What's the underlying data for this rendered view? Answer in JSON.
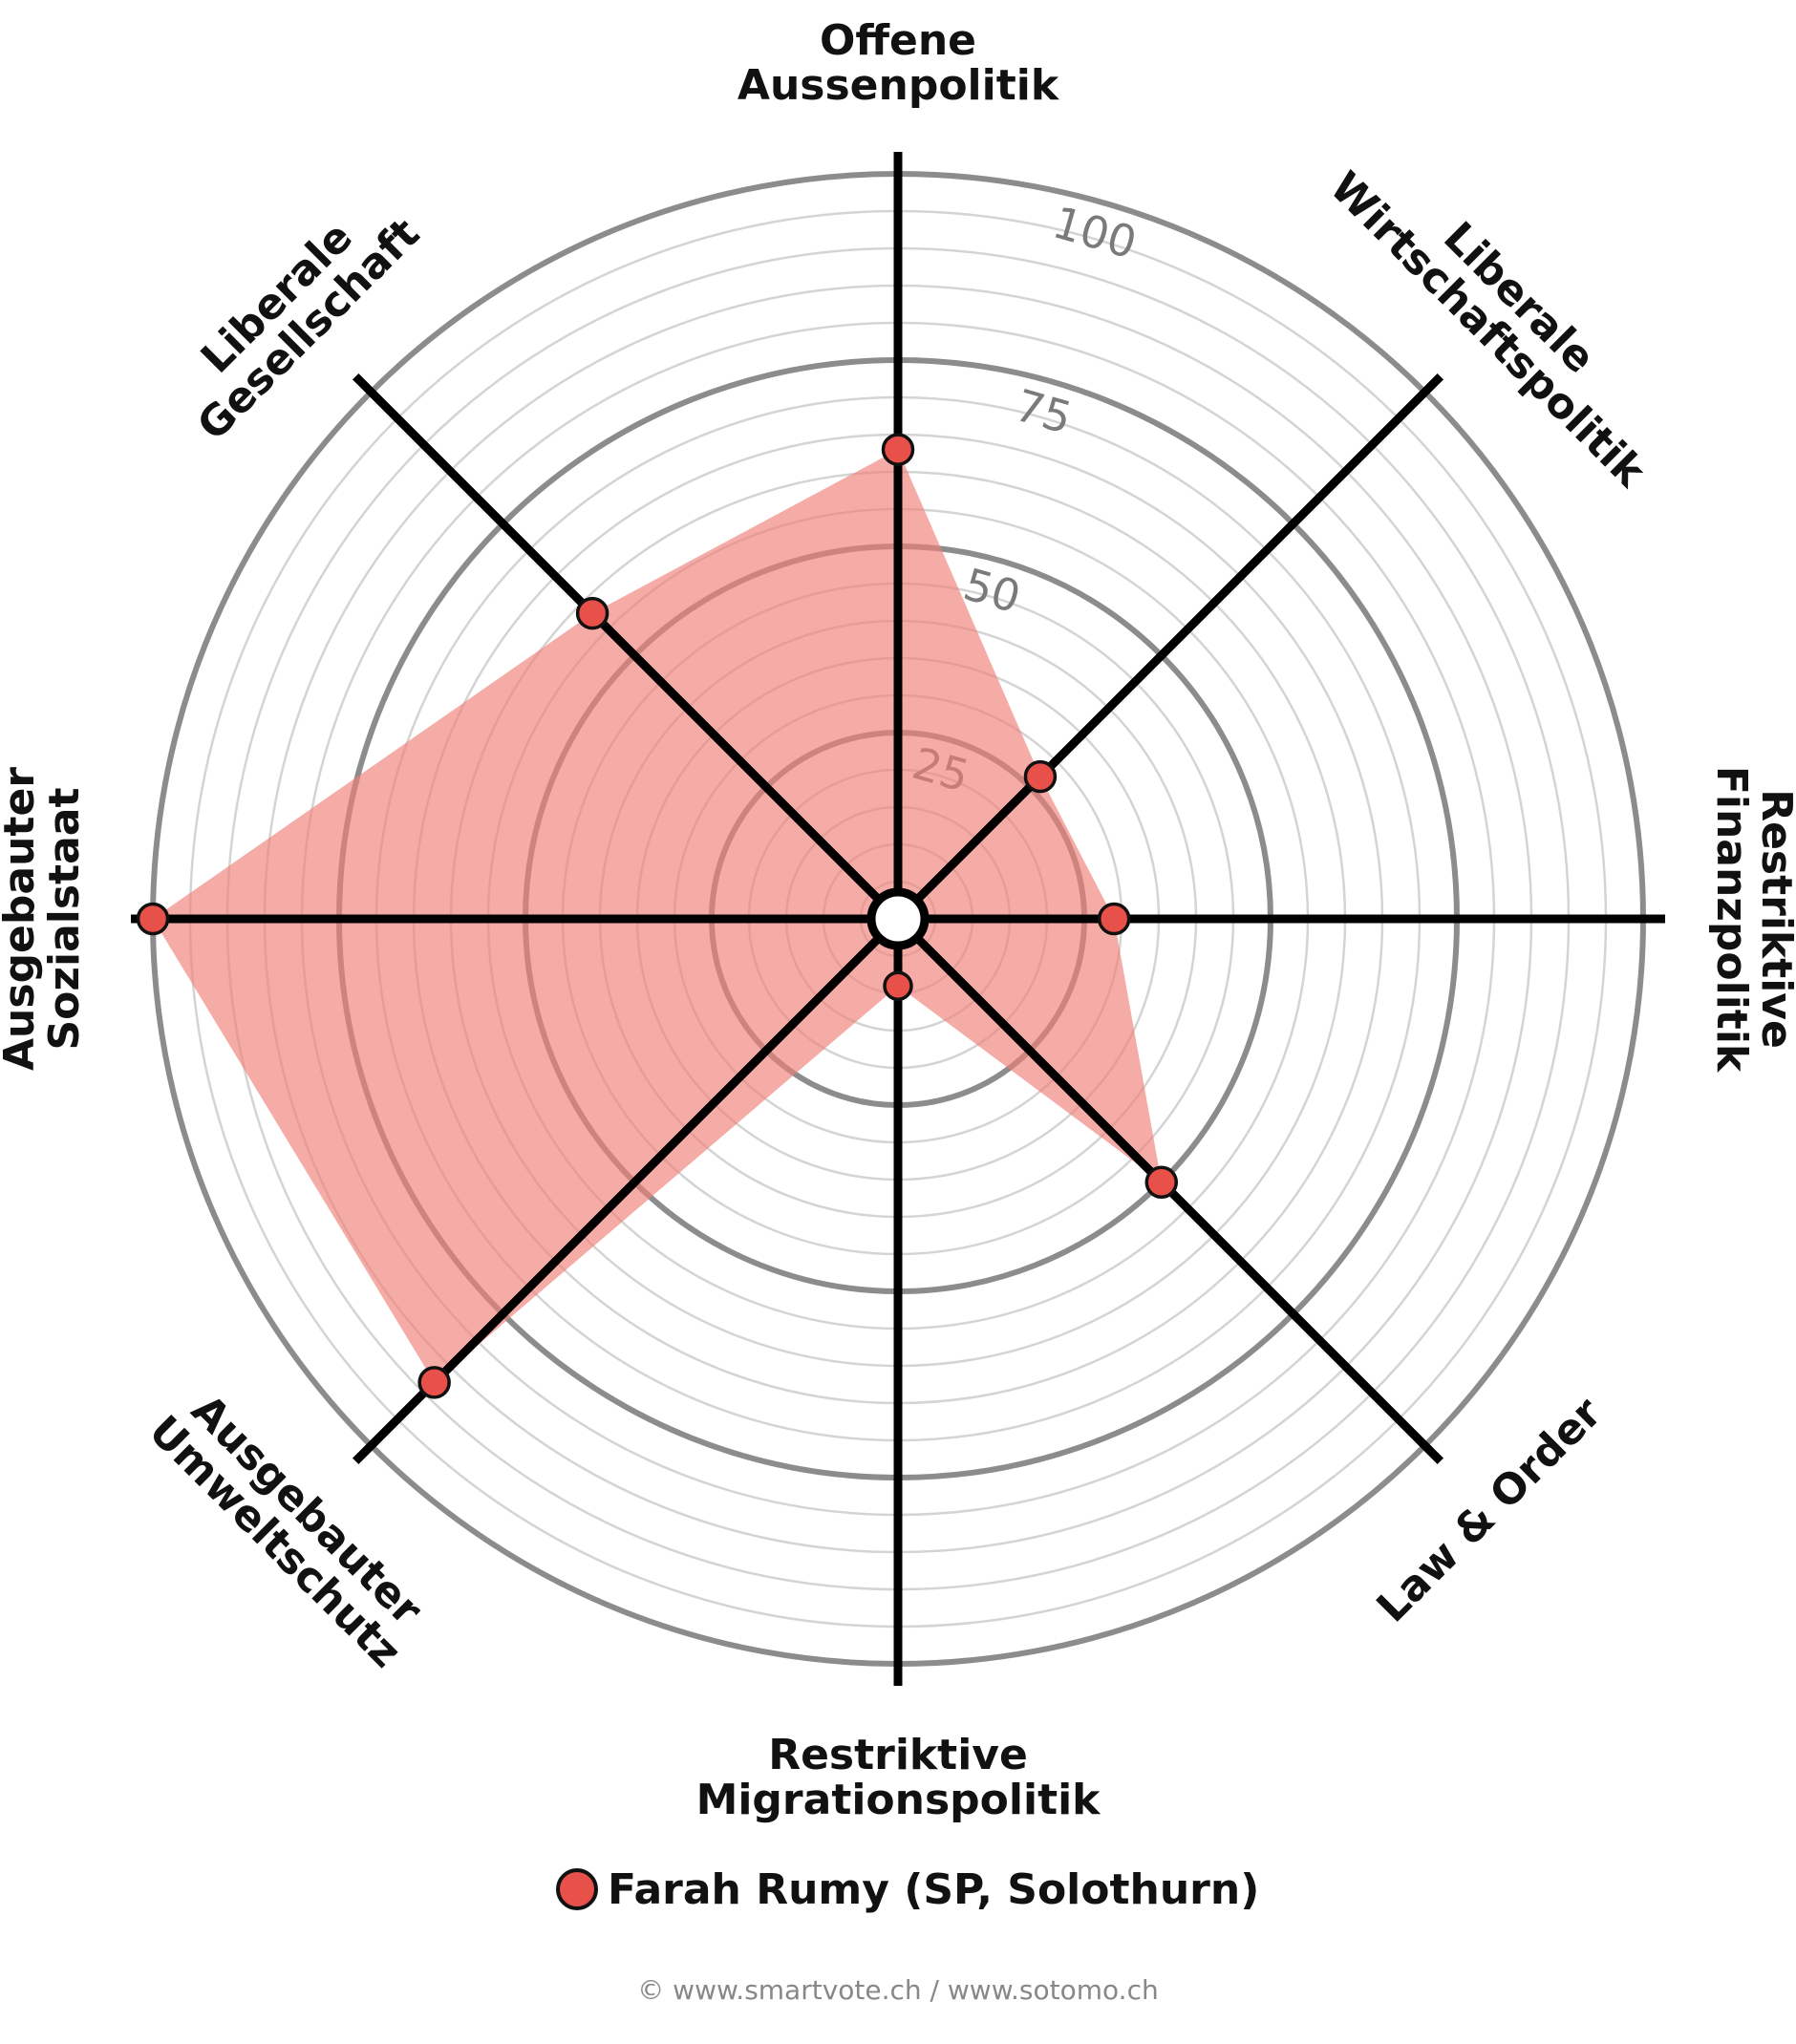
{
  "chart_data": {
    "type": "radar",
    "axes": [
      "Offene Aussenpolitik",
      "Liberale Wirtschaftspolitik",
      "Restriktive Finanzpolitik",
      "Law & Order",
      "Restriktive Migrationspolitik",
      "Ausgebauter Umweltschutz",
      "Ausgebauter Sozialstaat",
      "Liberale Gesellschaft"
    ],
    "axis_label_lines": [
      [
        "Offene",
        "Aussenpolitik"
      ],
      [
        "Liberale",
        "Wirtschaftspolitik"
      ],
      [
        "Restriktive",
        "Finanzpolitik"
      ],
      [
        "Law & Order"
      ],
      [
        "Restriktive",
        "Migrationspolitik"
      ],
      [
        "Ausgebauter",
        "Umweltschutz"
      ],
      [
        "Ausgebauter",
        "Sozialstaat"
      ],
      [
        "Liberale",
        "Gesellschaft"
      ]
    ],
    "series": [
      {
        "name": "Farah Rumy (SP, Solothurn)",
        "values": [
          63,
          27,
          29,
          50,
          9,
          88,
          100,
          58
        ]
      }
    ],
    "range": [
      0,
      100
    ],
    "major_ticks": [
      25,
      50,
      75,
      100
    ],
    "minor_step": 5,
    "grid": true,
    "legend_position": "bottom",
    "colors": {
      "fill": "#f08078",
      "fill_opacity": 0.65,
      "marker": "#e8504a",
      "marker_stroke": "#111111",
      "axis": "#000000",
      "major_grid": "#8c8c8c",
      "minor_grid": "#d4d4d4"
    }
  },
  "footer": {
    "copyright": "© www.smartvote.ch / www.sotomo.ch"
  }
}
